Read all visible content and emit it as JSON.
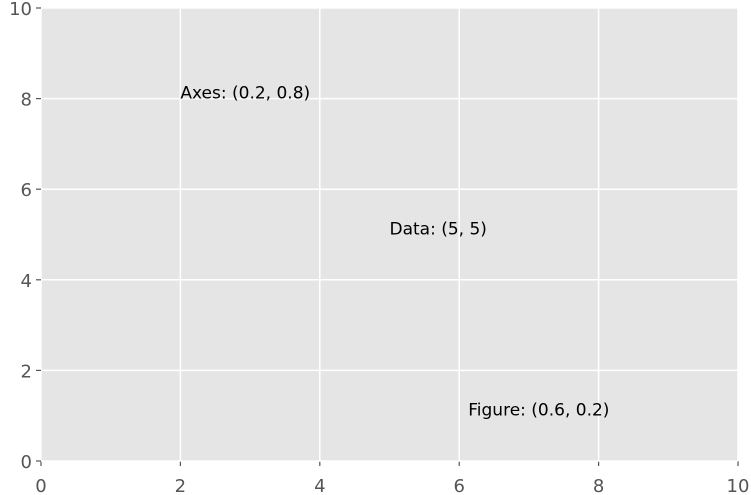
{
  "chart_data": {
    "type": "text",
    "annotations": [
      {
        "text": "Axes: (0.2, 0.8)",
        "x": 2,
        "y": 8
      },
      {
        "text": "Data: (5, 5)",
        "x": 5,
        "y": 5
      },
      {
        "text": "Figure: (0.6, 0.2)",
        "x": 6.13,
        "y": 1
      }
    ],
    "xlim": [
      0,
      10
    ],
    "ylim": [
      0,
      10
    ],
    "xticks": [
      0,
      2,
      4,
      6,
      8,
      10
    ],
    "yticks": [
      0,
      2,
      4,
      6,
      8,
      10
    ],
    "grid": true,
    "background": "#e5e5e5"
  }
}
